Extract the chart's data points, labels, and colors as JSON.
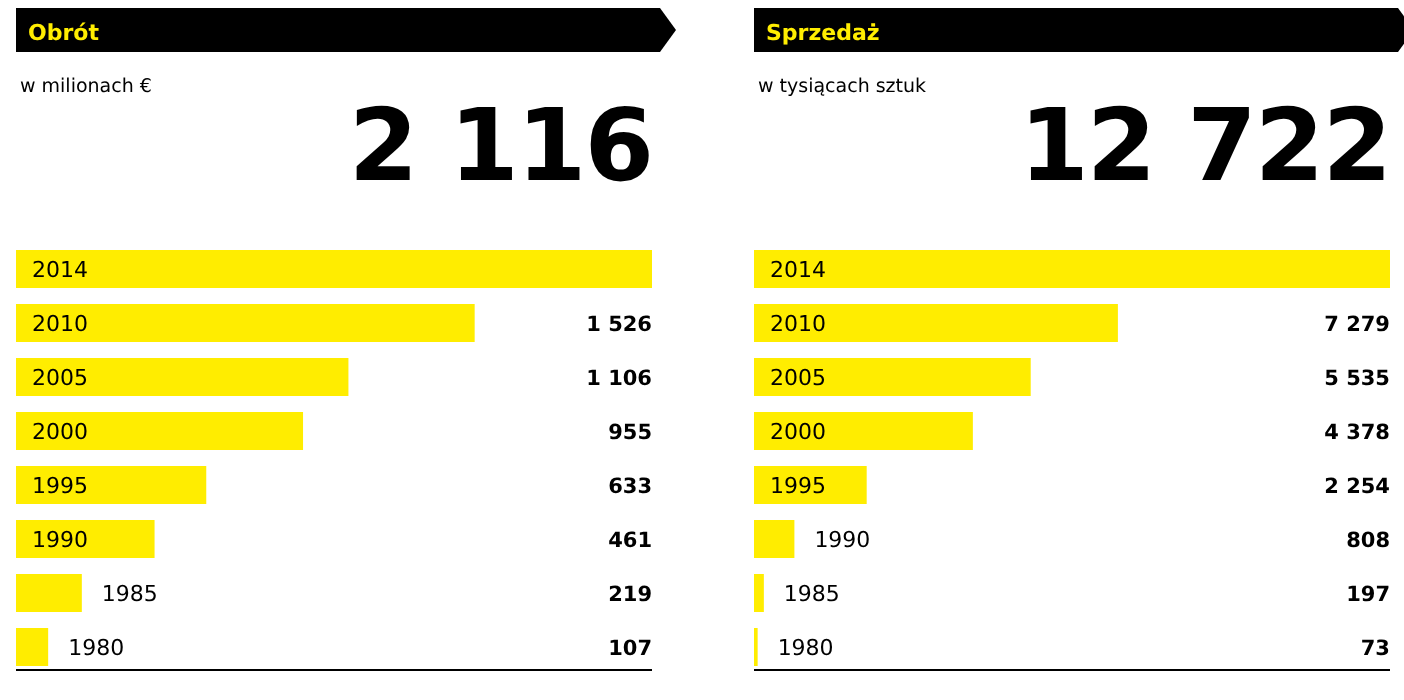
{
  "chart_data": [
    {
      "type": "bar",
      "orientation": "horizontal",
      "title": "Obrót",
      "subtitle": "w milionach €",
      "annotations": [
        "2 116"
      ],
      "categories": [
        "2014",
        "2010",
        "2005",
        "2000",
        "1995",
        "1990",
        "1985",
        "1980"
      ],
      "values": [
        2116,
        1526,
        1106,
        955,
        633,
        461,
        219,
        107
      ],
      "value_labels": [
        null,
        "1 526",
        "1 106",
        "955",
        "633",
        "461",
        "219",
        "107"
      ],
      "color": "#ffed00"
    },
    {
      "type": "bar",
      "orientation": "horizontal",
      "title": "Sprzedaż",
      "subtitle": "w tysiącach sztuk",
      "annotations": [
        "12 722"
      ],
      "categories": [
        "2014",
        "2010",
        "2005",
        "2000",
        "1995",
        "1990",
        "1985",
        "1980"
      ],
      "values": [
        12722,
        7279,
        5535,
        4378,
        2254,
        808,
        197,
        73
      ],
      "value_labels": [
        null,
        "7 279",
        "5 535",
        "4 378",
        "2 254",
        "808",
        "197",
        "73"
      ],
      "color": "#ffed00"
    }
  ]
}
